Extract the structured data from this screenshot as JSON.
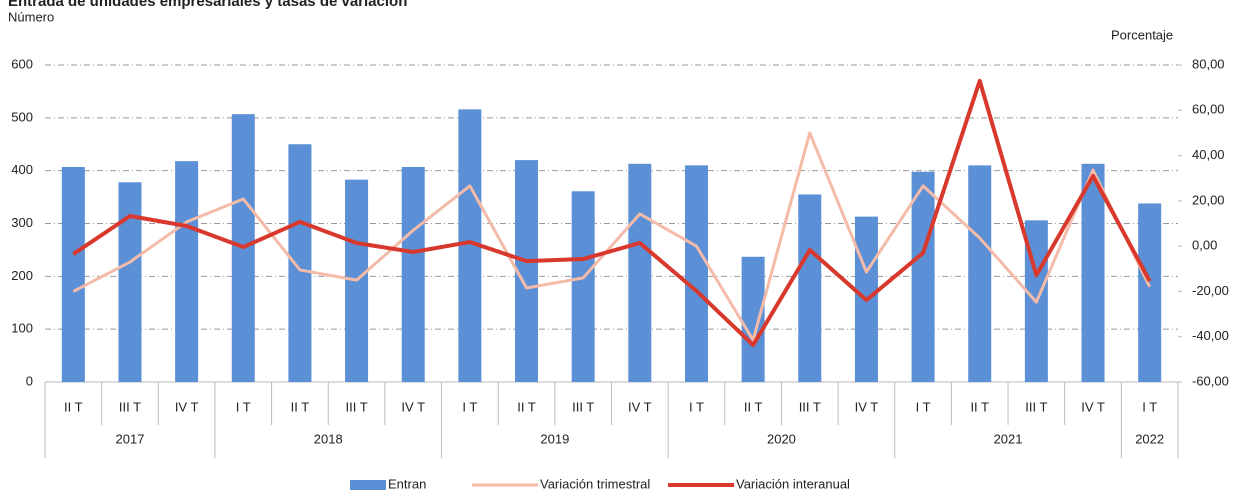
{
  "chart_data": {
    "type": "bar-line",
    "title": "Entrada de unidades empresariales y tasas de variación",
    "subtitle": "Número",
    "y2_label": "Porcentaje",
    "groups": [
      {
        "name": "2017",
        "categories": [
          "II T",
          "III T",
          "IV T"
        ]
      },
      {
        "name": "2018",
        "categories": [
          "I T",
          "II T",
          "III T",
          "IV T"
        ]
      },
      {
        "name": "2019",
        "categories": [
          "I T",
          "II T",
          "III T",
          "IV T"
        ]
      },
      {
        "name": "2020",
        "categories": [
          "I T",
          "II T",
          "III T",
          "IV T"
        ]
      },
      {
        "name": "2021",
        "categories": [
          "I T",
          "II T",
          "III T",
          "IV T"
        ]
      },
      {
        "name": "2022",
        "categories": [
          "I T"
        ]
      }
    ],
    "series": [
      {
        "name": "Entran",
        "kind": "bar",
        "color": "#5b8fd6",
        "axis": "y",
        "values": [
          407,
          378,
          418,
          507,
          450,
          383,
          407,
          516,
          420,
          361,
          413,
          410,
          237,
          355,
          313,
          398,
          410,
          306,
          413,
          338
        ]
      },
      {
        "name": "Variación trimestral",
        "kind": "line",
        "color": "#f4bba8",
        "axis": "y2",
        "values": [
          -20,
          -7,
          10.7,
          20.8,
          -10.5,
          -15,
          7,
          26.6,
          -18.5,
          -14,
          14.2,
          0,
          -41.5,
          50,
          -11.4,
          26.6,
          3.6,
          -24.7,
          33.6,
          -18
        ]
      },
      {
        "name": "Variación interanual",
        "kind": "line",
        "color": "#d9382c",
        "axis": "y2",
        "values": [
          -3.5,
          13.3,
          8.9,
          -0.4,
          10.7,
          1.4,
          -2.6,
          1.8,
          -6.6,
          -5.7,
          1.4,
          -19.8,
          -43.7,
          -1.7,
          -23.8,
          -3,
          73,
          -12.8,
          31,
          -15.4
        ]
      }
    ],
    "ylim": [
      0,
      600
    ],
    "yticks": [
      0,
      100,
      200,
      300,
      400,
      500,
      600
    ],
    "y2lim": [
      -60,
      80
    ],
    "y2ticks": [
      {
        "value": -60,
        "label": "-60,00"
      },
      {
        "value": -40,
        "label": "-40,00"
      },
      {
        "value": -20,
        "label": "-20,00"
      },
      {
        "value": 0,
        "label": "0,00"
      },
      {
        "value": 20,
        "label": "20,00"
      },
      {
        "value": 40,
        "label": "40,00"
      },
      {
        "value": 60,
        "label": "60,00"
      },
      {
        "value": 80,
        "label": "80,00"
      }
    ],
    "grid": true,
    "legend": "bottom"
  }
}
